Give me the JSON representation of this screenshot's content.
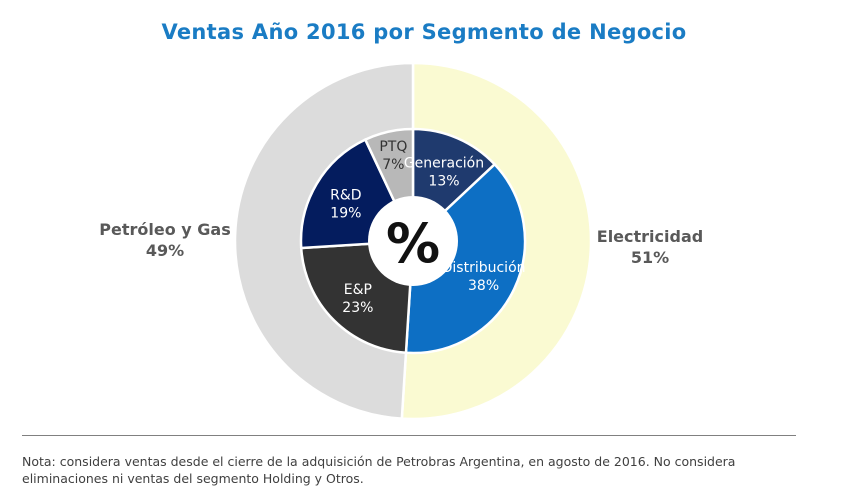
{
  "chart_data": {
    "type": "pie",
    "title": "Ventas Año 2016 por Segmento de Negocio",
    "center_label": "%",
    "outer_ring": [
      {
        "label": "Electricidad",
        "value": 51,
        "value_text": "51%",
        "color": "#fafad2"
      },
      {
        "label": "Petróleo y Gas",
        "value": 49,
        "value_text": "49%",
        "color": "#dcdcdc"
      }
    ],
    "inner_ring": [
      {
        "label": "Generación",
        "value": 13,
        "value_text": "13%",
        "color": "#1f3a6e"
      },
      {
        "label": "Distribución",
        "value": 38,
        "value_text": "38%",
        "color": "#0d6fc4"
      },
      {
        "label": "E&P",
        "value": 23,
        "value_text": "23%",
        "color": "#333333"
      },
      {
        "label": "R&D",
        "value": 19,
        "value_text": "19%",
        "color": "#041c5e"
      },
      {
        "label": "PTQ",
        "value": 7,
        "value_text": "7%",
        "color": "#b8b8b8"
      }
    ]
  },
  "footnote": "Nota: considera ventas desde el cierre de la adquisición de Petrobras Argentina, en agosto de 2016. No considera eliminaciones ni ventas del segmento Holding y Otros."
}
